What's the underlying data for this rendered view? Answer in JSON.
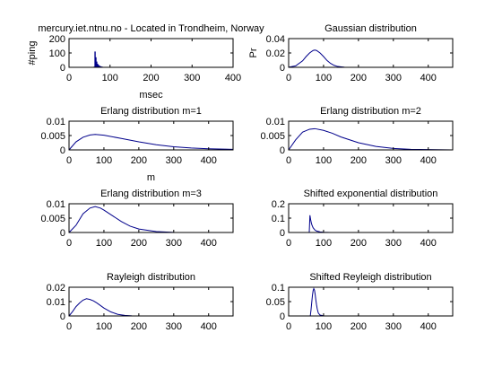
{
  "colors": {
    "line": "#00008b",
    "axes": "#000000",
    "background": "#ffffff"
  },
  "chart_data": [
    {
      "id": "ping",
      "type": "bar",
      "title": "mercury.iet.ntnu.no - Located in Trondheim, Norway",
      "xlabel": "msec",
      "ylabel": "#ping",
      "xlim": [
        0,
        400
      ],
      "ylim": [
        0,
        200
      ],
      "xticks": [
        0,
        100,
        200,
        300,
        400
      ],
      "yticks": [
        0,
        100,
        200
      ],
      "x": [
        60,
        62,
        64,
        66,
        68,
        70,
        72,
        74,
        76,
        78,
        80,
        84,
        88,
        95,
        105,
        120
      ],
      "values": [
        5,
        110,
        70,
        40,
        25,
        18,
        12,
        9,
        7,
        5,
        4,
        3,
        2,
        2,
        1,
        1
      ]
    },
    {
      "id": "gauss",
      "type": "line",
      "title": "Gaussian distribution",
      "xlabel": "",
      "ylabel": "Pr",
      "xlim": [
        0,
        470
      ],
      "ylim": [
        0,
        0.04
      ],
      "xticks": [
        0,
        100,
        200,
        300,
        400
      ],
      "yticks": [
        0,
        0.02,
        0.04
      ],
      "x": [
        0,
        20,
        40,
        50,
        60,
        70,
        75,
        80,
        90,
        100,
        110,
        120,
        130,
        140,
        160,
        180,
        200,
        220
      ],
      "y": [
        0.0001,
        0.002,
        0.009,
        0.015,
        0.02,
        0.0235,
        0.024,
        0.0235,
        0.02,
        0.015,
        0.0095,
        0.0055,
        0.0028,
        0.0012,
        0.0002,
        3e-05,
        0,
        0
      ]
    },
    {
      "id": "erlang1",
      "type": "line",
      "title": "Erlang distribution m=1",
      "xlabel": "m",
      "ylabel": "",
      "xlim": [
        0,
        470
      ],
      "ylim": [
        0,
        0.01
      ],
      "xticks": [
        0,
        100,
        200,
        300,
        400
      ],
      "yticks": [
        0,
        0.005,
        0.01
      ],
      "x": [
        0,
        20,
        40,
        60,
        75,
        100,
        150,
        200,
        250,
        300,
        350,
        400,
        470
      ],
      "y": [
        0,
        0.0028,
        0.0044,
        0.0052,
        0.0054,
        0.0051,
        0.004,
        0.0028,
        0.0018,
        0.0011,
        0.00065,
        0.0004,
        0.0002
      ]
    },
    {
      "id": "erlang2",
      "type": "line",
      "title": "Erlang distribution m=2",
      "xlabel": "",
      "ylabel": "",
      "xlim": [
        0,
        470
      ],
      "ylim": [
        0,
        0.01
      ],
      "xticks": [
        0,
        100,
        200,
        300,
        400
      ],
      "yticks": [
        0,
        0.005,
        0.01
      ],
      "x": [
        0,
        20,
        40,
        60,
        75,
        100,
        125,
        150,
        200,
        250,
        300,
        350,
        400,
        470
      ],
      "y": [
        0,
        0.0035,
        0.0062,
        0.0072,
        0.0074,
        0.0068,
        0.0058,
        0.0045,
        0.0025,
        0.0012,
        0.0005,
        0.0002,
        0.0001,
        0
      ]
    },
    {
      "id": "erlang3",
      "type": "line",
      "title": "Erlang distribution m=3",
      "xlabel": "",
      "ylabel": "",
      "xlim": [
        0,
        470
      ],
      "ylim": [
        0,
        0.01
      ],
      "xticks": [
        0,
        100,
        200,
        300,
        400
      ],
      "yticks": [
        0,
        0.005,
        0.01
      ],
      "x": [
        0,
        20,
        40,
        60,
        75,
        90,
        100,
        125,
        150,
        175,
        200,
        250,
        300,
        350,
        470
      ],
      "y": [
        0,
        0.0025,
        0.0065,
        0.0085,
        0.009,
        0.0085,
        0.0078,
        0.0058,
        0.0038,
        0.0022,
        0.0012,
        0.0003,
        5e-05,
        0,
        0
      ]
    },
    {
      "id": "shiftexp",
      "type": "line",
      "title": "Shifted exponential distribution",
      "xlabel": "",
      "ylabel": "",
      "xlim": [
        0,
        470
      ],
      "ylim": [
        0,
        0.2
      ],
      "xticks": [
        0,
        100,
        200,
        300,
        400
      ],
      "yticks": [
        0,
        0.1,
        0.2
      ],
      "x": [
        0,
        59,
        61,
        63,
        65,
        67,
        70,
        75,
        80,
        90,
        100,
        120,
        150,
        200,
        360
      ],
      "y": [
        0,
        0,
        0.12,
        0.09,
        0.066,
        0.05,
        0.033,
        0.018,
        0.01,
        0.004,
        0.0015,
        0.0003,
        0,
        0,
        0
      ]
    },
    {
      "id": "rayleigh",
      "type": "line",
      "title": "Rayleigh distribution",
      "xlabel": "",
      "ylabel": "",
      "xlim": [
        0,
        470
      ],
      "ylim": [
        0,
        0.02
      ],
      "xticks": [
        0,
        100,
        200,
        300,
        400
      ],
      "yticks": [
        0,
        0.01,
        0.02
      ],
      "x": [
        0,
        10,
        20,
        30,
        40,
        50,
        60,
        70,
        80,
        100,
        120,
        140,
        160,
        180,
        200,
        470
      ],
      "y": [
        0,
        0.003,
        0.0065,
        0.009,
        0.011,
        0.012,
        0.0115,
        0.0105,
        0.009,
        0.0055,
        0.0028,
        0.0011,
        0.0004,
        0.0001,
        0,
        0
      ]
    },
    {
      "id": "shiftray",
      "type": "line",
      "title": "Shifted Reyleigh distribution",
      "xlabel": "",
      "ylabel": "",
      "xlim": [
        0,
        470
      ],
      "ylim": [
        0,
        0.1
      ],
      "xticks": [
        0,
        100,
        200,
        300,
        400
      ],
      "yticks": [
        0,
        0.05,
        0.1
      ],
      "x": [
        0,
        62,
        64,
        66,
        68,
        70,
        72,
        74,
        76,
        78,
        80,
        82,
        85,
        90,
        100,
        110,
        470
      ],
      "y": [
        0,
        0,
        0.02,
        0.045,
        0.07,
        0.088,
        0.095,
        0.09,
        0.075,
        0.055,
        0.038,
        0.024,
        0.01,
        0.003,
        0.0005,
        0,
        0
      ]
    }
  ]
}
